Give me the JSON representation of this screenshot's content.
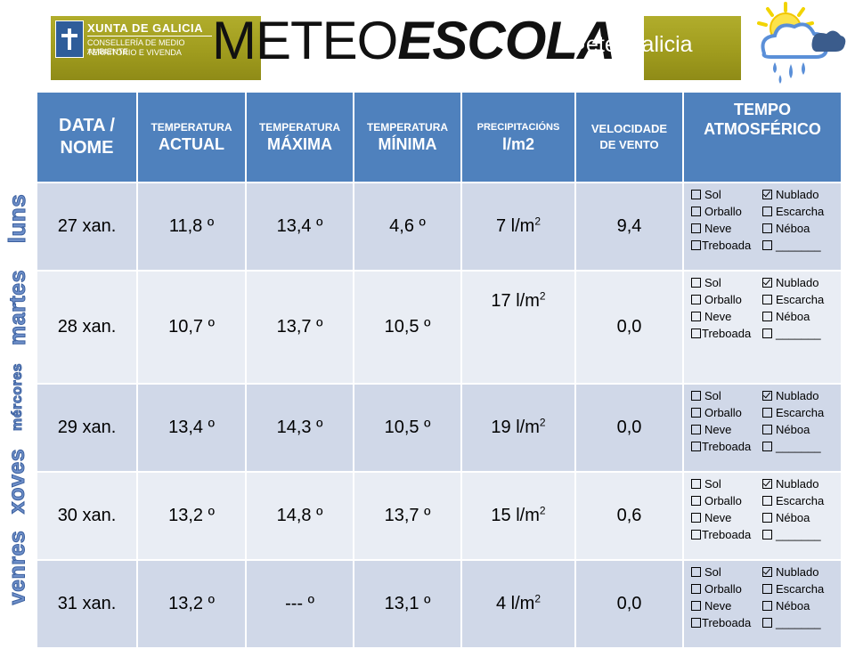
{
  "header": {
    "xunta_title": "XUNTA DE GALICIA",
    "xunta_sub1": "CONSELLERÍA DE MEDIO AMBIENTE",
    "xunta_sub2": "TERRITORIO E VIVENDA",
    "title_part_a": "METEO",
    "title_part_b": "ESCOLA",
    "meteogalicia": "eteogalicia",
    "banner_color": "#a09c1e",
    "icon": "sun-cloud-rain-icon"
  },
  "table": {
    "header_color": "#4f81bd",
    "row_color_a": "#d0d8e8",
    "row_color_b": "#e9edf4",
    "columns": {
      "date_l1": "DATA /",
      "date_l2": "NOME",
      "actual_l1": "TEMPERATURA",
      "actual_l2": "ACTUAL",
      "max_l1": "TEMPERATURA",
      "max_l2": "MÁXIMA",
      "min_l1": "TEMPERATURA",
      "min_l2": "MÍNIMA",
      "precip_l1": "PRECIPITACIÓNS",
      "precip_l2": "l/m2",
      "wind_l1": "VELOCIDADE",
      "wind_l2": "DE VENTO",
      "sky_l1": "TEMPO",
      "sky_l2": "ATMOSFÉRICO"
    },
    "options": {
      "sol": "Sol",
      "nublado": "Nublado",
      "orballo": "Orballo",
      "escarcha": "Escarcha",
      "neve": "Neve",
      "neboa": "Néboa",
      "treboada": "Treboada",
      "blank": "_______"
    },
    "precip_unit": "l/m",
    "precip_exp": "2",
    "rows": [
      {
        "day": "luns",
        "date": "27 xan.",
        "actual": "11,8 º",
        "max": "13,4 º",
        "min": "4,6 º",
        "precip": "7",
        "wind": "9,4",
        "checked": "nublado"
      },
      {
        "day": "martes",
        "date": "28 xan.",
        "actual": "10,7 º",
        "max": "13,7 º",
        "min": "10,5 º",
        "precip": "17",
        "wind": "0,0",
        "checked": "nublado"
      },
      {
        "day": "mércores",
        "date": "29 xan.",
        "actual": "13,4 º",
        "max": "14,3 º",
        "min": "10,5 º",
        "precip": "19",
        "wind": "0,0",
        "checked": "nublado"
      },
      {
        "day": "xoves",
        "date": "30 xan.",
        "actual": "13,2 º",
        "max": "14,8 º",
        "min": "13,7 º",
        "precip": "15",
        "wind": "0,6",
        "checked": "nublado"
      },
      {
        "day": "venres",
        "date": "31 xan.",
        "actual": "13,2 º",
        "max": "--- º",
        "min": "13,1 º",
        "precip": "4",
        "wind": "0,0",
        "checked": "nublado"
      }
    ]
  }
}
